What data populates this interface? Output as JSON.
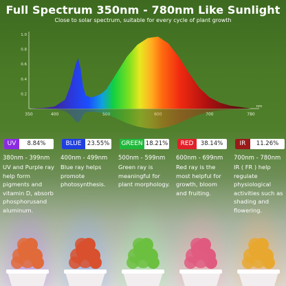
{
  "header": {
    "title": "Full Spectrum 350nm - 780nm Like Sunlight",
    "subtitle": "Close to solar spectrum, suitable for every cycle of plant growth"
  },
  "chart_data": {
    "type": "area",
    "y_ticks": [
      "1.0",
      "0.8",
      "0.6",
      "0.4",
      "0.2"
    ],
    "x_ticks": [
      {
        "value": 350,
        "label": "350"
      },
      {
        "value": 400,
        "label": "400"
      },
      {
        "value": 500,
        "label": "500"
      },
      {
        "value": 600,
        "label": "600"
      },
      {
        "value": 700,
        "label": "700"
      },
      {
        "value": 780,
        "label": "780"
      }
    ],
    "x_unit": "nm",
    "xlim": [
      350,
      780
    ],
    "ylim": [
      0,
      1.0
    ],
    "series": [
      {
        "x": [
          350,
          380,
          400,
          420,
          430,
          440,
          445,
          450,
          455,
          460,
          470,
          480,
          490,
          500,
          520,
          540,
          560,
          580,
          600,
          620,
          640,
          660,
          680,
          700,
          720,
          740,
          760,
          780
        ],
        "y": [
          0.0,
          0.01,
          0.03,
          0.12,
          0.3,
          0.58,
          0.68,
          0.55,
          0.3,
          0.18,
          0.15,
          0.17,
          0.2,
          0.26,
          0.48,
          0.7,
          0.86,
          0.95,
          0.97,
          0.88,
          0.7,
          0.48,
          0.28,
          0.15,
          0.08,
          0.04,
          0.02,
          0.0
        ]
      }
    ],
    "grid": false,
    "legend": "none"
  },
  "bands": [
    {
      "name": "UV",
      "percent": "8.84%",
      "range": "380nm - 399nm",
      "description": "UV and Purple ray help form pigments and vitamin D, absorb phosphorusand aluminum.",
      "color": "#8a2be2",
      "glow": "#c080ff",
      "plant_color": "#e06a3a"
    },
    {
      "name": "BLUE",
      "percent": "23.55%",
      "range": "400nm - 499nm",
      "description": "Blue ray helps promote photosynthesis.",
      "color": "#1f3fe0",
      "glow": "#8aa8ff",
      "plant_color": "#d8502e"
    },
    {
      "name": "GREEN",
      "percent": "18.21%",
      "range": "500nm - 599nm",
      "description": "Green ray is meaningful for plant morphology.",
      "color": "#1fb83a",
      "glow": "#9af0a0",
      "plant_color": "#6cc040"
    },
    {
      "name": "RED",
      "percent": "38.14%",
      "range": "600nm - 699nm",
      "description": "Red ray is the most helpful for growth, bloom and fruiting.",
      "color": "#e0202a",
      "glow": "#ffa0b0",
      "plant_color": "#e05a80"
    },
    {
      "name": "IR",
      "percent": "11.26%",
      "range": "700nm - 780nm",
      "description": "IR ( FR ) help regulate physiological activities such as shading and flowering.",
      "color": "#9a1a1a",
      "glow": "#ffb070",
      "plant_color": "#e8a830"
    }
  ]
}
